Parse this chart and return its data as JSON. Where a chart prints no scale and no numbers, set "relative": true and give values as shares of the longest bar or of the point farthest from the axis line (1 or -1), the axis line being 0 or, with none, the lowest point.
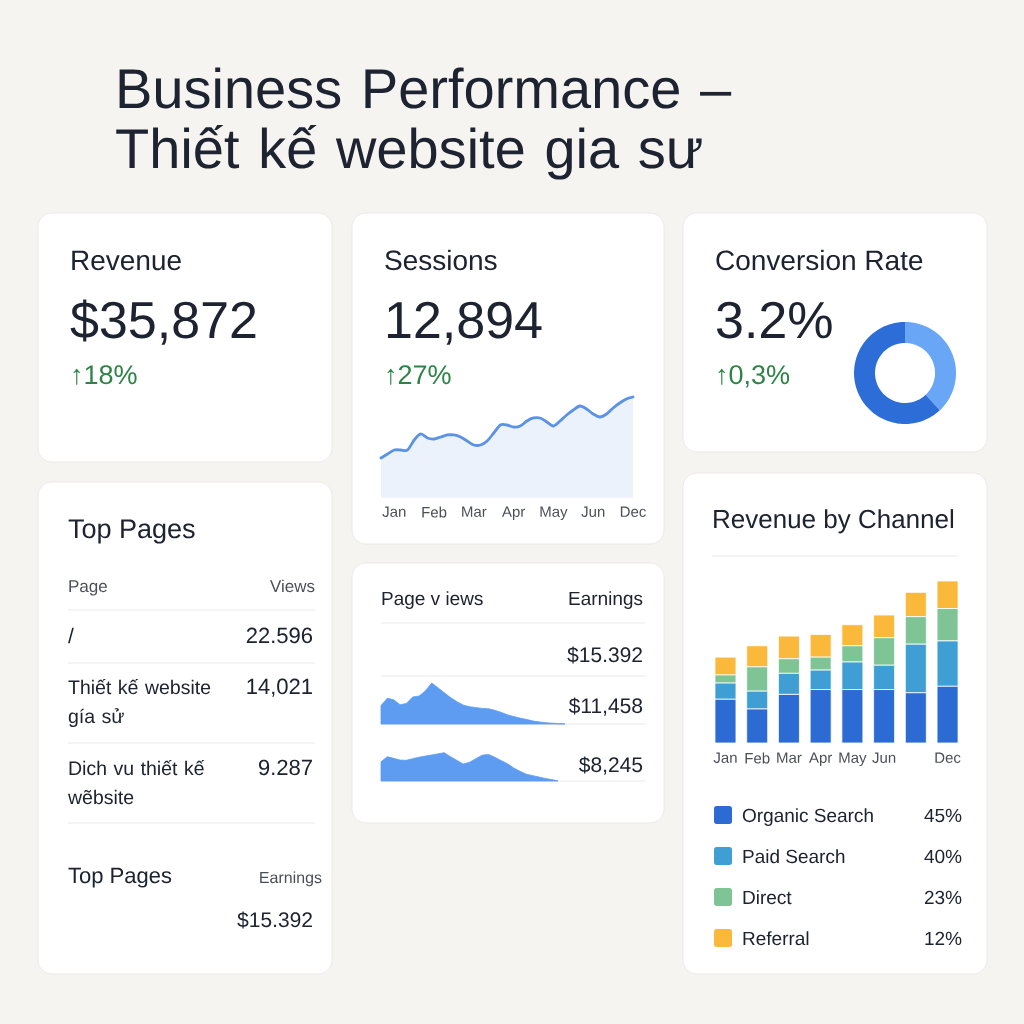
{
  "chart_data": [
    {
      "type": "other",
      "title": "Business Performance – Thiết kế website gia sư"
    },
    {
      "type": "other",
      "title": "Revenue",
      "annotations": [
        "$35,872",
        "↑18%"
      ]
    },
    {
      "type": "area",
      "title": "Sessions",
      "annotations": [
        "12,894",
        "↑27%"
      ],
      "relative": true,
      "tick_labels": "x",
      "categories": [
        null,
        null,
        "Jan",
        null,
        null,
        null,
        null,
        null,
        "Feb",
        null,
        null,
        null,
        null,
        null,
        "Mar",
        null,
        null,
        null,
        null,
        null,
        "Apr",
        null,
        null,
        null,
        null,
        null,
        "May",
        null,
        null,
        null,
        null,
        null,
        "Jun",
        null,
        null,
        null,
        null,
        null,
        "Dec"
      ],
      "series": [
        {
          "color": "#5a92e5",
          "values": [
            0.39,
            0.43,
            0.47,
            0.47,
            0.47,
            0.57,
            0.63,
            0.59,
            0.58,
            0.6,
            0.62,
            0.62,
            0.6,
            0.56,
            0.52,
            0.52,
            0.56,
            0.64,
            0.72,
            0.72,
            0.7,
            0.71,
            0.76,
            0.79,
            0.79,
            0.75,
            0.71,
            0.76,
            0.82,
            0.87,
            0.91,
            0.88,
            0.83,
            0.8,
            0.83,
            0.89,
            0.94,
            0.98,
            1
          ]
        }
      ]
    },
    {
      "type": "donut",
      "title": "Conversion Rate",
      "annotations": [
        "3.2%",
        "↑0,3%"
      ],
      "categories": [
        null,
        null
      ],
      "values": [
        38,
        62
      ],
      "colors": [
        "#6aa6f6",
        "#2d6dd7"
      ]
    },
    {
      "type": "other",
      "title": "Top Pages",
      "annotations": [
        "Page",
        "Views",
        "/",
        "22.596",
        "Thiết kế website gía sử",
        "14,021",
        "Dich vu thiết kế wẽbsite",
        "9.287",
        "Top Pages",
        "Earnings",
        "$15.392"
      ]
    },
    {
      "type": "other",
      "annotations": [
        "Page v iews",
        "Earnings",
        "$15.392",
        "$11,458",
        "$8,245"
      ]
    },
    {
      "type": "area",
      "relative": true,
      "categories": [
        null,
        null,
        null,
        null,
        null,
        null,
        null,
        null,
        null,
        null,
        null,
        null,
        null,
        null,
        null,
        null,
        null,
        null,
        null,
        null,
        null,
        null,
        null,
        null,
        null,
        null,
        null,
        null,
        null,
        null
      ],
      "color": "#5e9cf1",
      "values": [
        0.45,
        0.63,
        0.59,
        0.47,
        0.5,
        0.66,
        0.68,
        0.81,
        1,
        0.88,
        0.76,
        0.64,
        0.54,
        0.46,
        0.42,
        0.4,
        0.38,
        0.37,
        0.33,
        0.28,
        0.22,
        0.18,
        0.14,
        0.11,
        0.07,
        0.05,
        0.03,
        0.02,
        0.01,
        0
      ]
    },
    {
      "type": "area",
      "relative": true,
      "categories": [
        null,
        null,
        null,
        null,
        null,
        null,
        null,
        null,
        null,
        null,
        null,
        null,
        null,
        null,
        null,
        null,
        null,
        null,
        null,
        null,
        null,
        null,
        null,
        null,
        null,
        null,
        null,
        null,
        null
      ],
      "color": "#5e9cf1",
      "values": [
        0.68,
        0.86,
        0.8,
        0.74,
        0.73,
        0.79,
        0.84,
        0.88,
        0.92,
        0.96,
        1,
        0.86,
        0.73,
        0.6,
        0.66,
        0.79,
        0.91,
        0.94,
        0.84,
        0.72,
        0.61,
        0.46,
        0.34,
        0.24,
        0.19,
        0.14,
        0.09,
        0.05,
        0
      ]
    },
    {
      "type": "bar",
      "title": "Revenue by Channel",
      "stacked": true,
      "relative": true,
      "tick_labels": "x",
      "legend": "bottom",
      "categories": [
        "Jan",
        "Feb",
        "Mar",
        "Apr",
        "May",
        "Jun",
        null,
        "Dec"
      ],
      "series": [
        {
          "name": "Organic Search",
          "color": "#2c6bd4",
          "values": [
            0.27,
            0.21,
            0.3,
            0.33,
            0.33,
            0.33,
            0.31,
            0.35
          ]
        },
        {
          "name": "Paid Search",
          "color": "#3f9fd5",
          "values": [
            0.1,
            0.11,
            0.13,
            0.12,
            0.17,
            0.15,
            0.3,
            0.28
          ]
        },
        {
          "name": "Direct",
          "color": "#7fc495",
          "values": [
            0.05,
            0.15,
            0.09,
            0.08,
            0.1,
            0.17,
            0.17,
            0.2
          ]
        },
        {
          "name": "Referral",
          "color": "#fbb93c",
          "values": [
            0.11,
            0.13,
            0.14,
            0.14,
            0.13,
            0.14,
            0.15,
            0.17
          ]
        }
      ],
      "annotations": [
        "45%",
        "40%",
        "23%",
        "12%"
      ]
    }
  ]
}
